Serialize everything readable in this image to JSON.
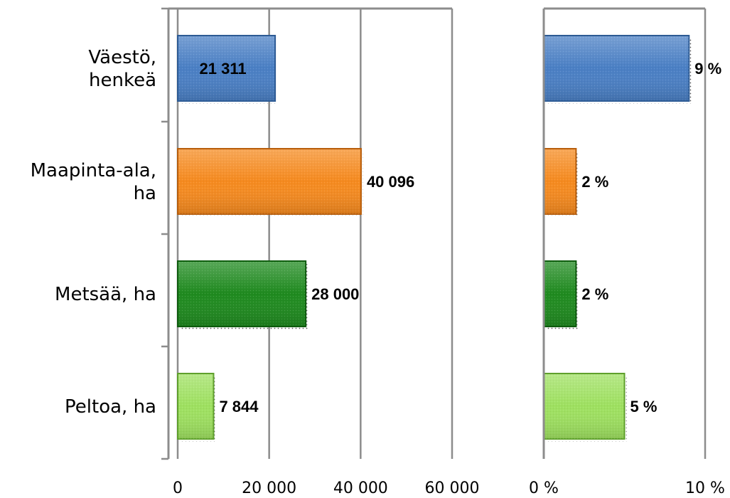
{
  "chart_data": [
    {
      "type": "bar",
      "orientation": "horizontal",
      "categories": [
        [
          "Väestö,",
          "henkeä"
        ],
        [
          "Maapinta-ala,",
          "ha"
        ],
        [
          "Metsää, ha"
        ],
        [
          "Peltoa, ha"
        ]
      ],
      "values": [
        21311,
        40096,
        28000,
        7844
      ],
      "value_labels": [
        "21 311",
        "40 096",
        "28 000",
        "7 844"
      ],
      "xlim": [
        0,
        60000
      ],
      "ticks": [
        0,
        20000,
        40000,
        60000
      ],
      "tick_labels": [
        "0",
        "20 000",
        "40 000",
        "60 000"
      ],
      "grid": true,
      "colors": [
        "#4a7fc4",
        "#f58a1f",
        "#1f8a1f",
        "#9ee060"
      ],
      "edge_colors": [
        "#2d5b95",
        "#b85e0c",
        "#0e5c0e",
        "#5fa02c"
      ]
    },
    {
      "type": "bar",
      "orientation": "horizontal",
      "categories": [
        [
          "Väestö,",
          "henkeä"
        ],
        [
          "Maapinta-ala,",
          "ha"
        ],
        [
          "Metsää, ha"
        ],
        [
          "Peltoa, ha"
        ]
      ],
      "values": [
        9,
        2,
        2,
        5
      ],
      "value_labels": [
        "9 %",
        "2 %",
        "2 %",
        "5 %"
      ],
      "xlim": [
        0,
        10
      ],
      "ticks": [
        0,
        10
      ],
      "tick_labels": [
        "0 %",
        "10 %"
      ],
      "grid": true,
      "colors": [
        "#4a7fc4",
        "#f58a1f",
        "#1f8a1f",
        "#9ee060"
      ],
      "edge_colors": [
        "#2d5b95",
        "#b85e0c",
        "#0e5c0e",
        "#5fa02c"
      ]
    }
  ]
}
